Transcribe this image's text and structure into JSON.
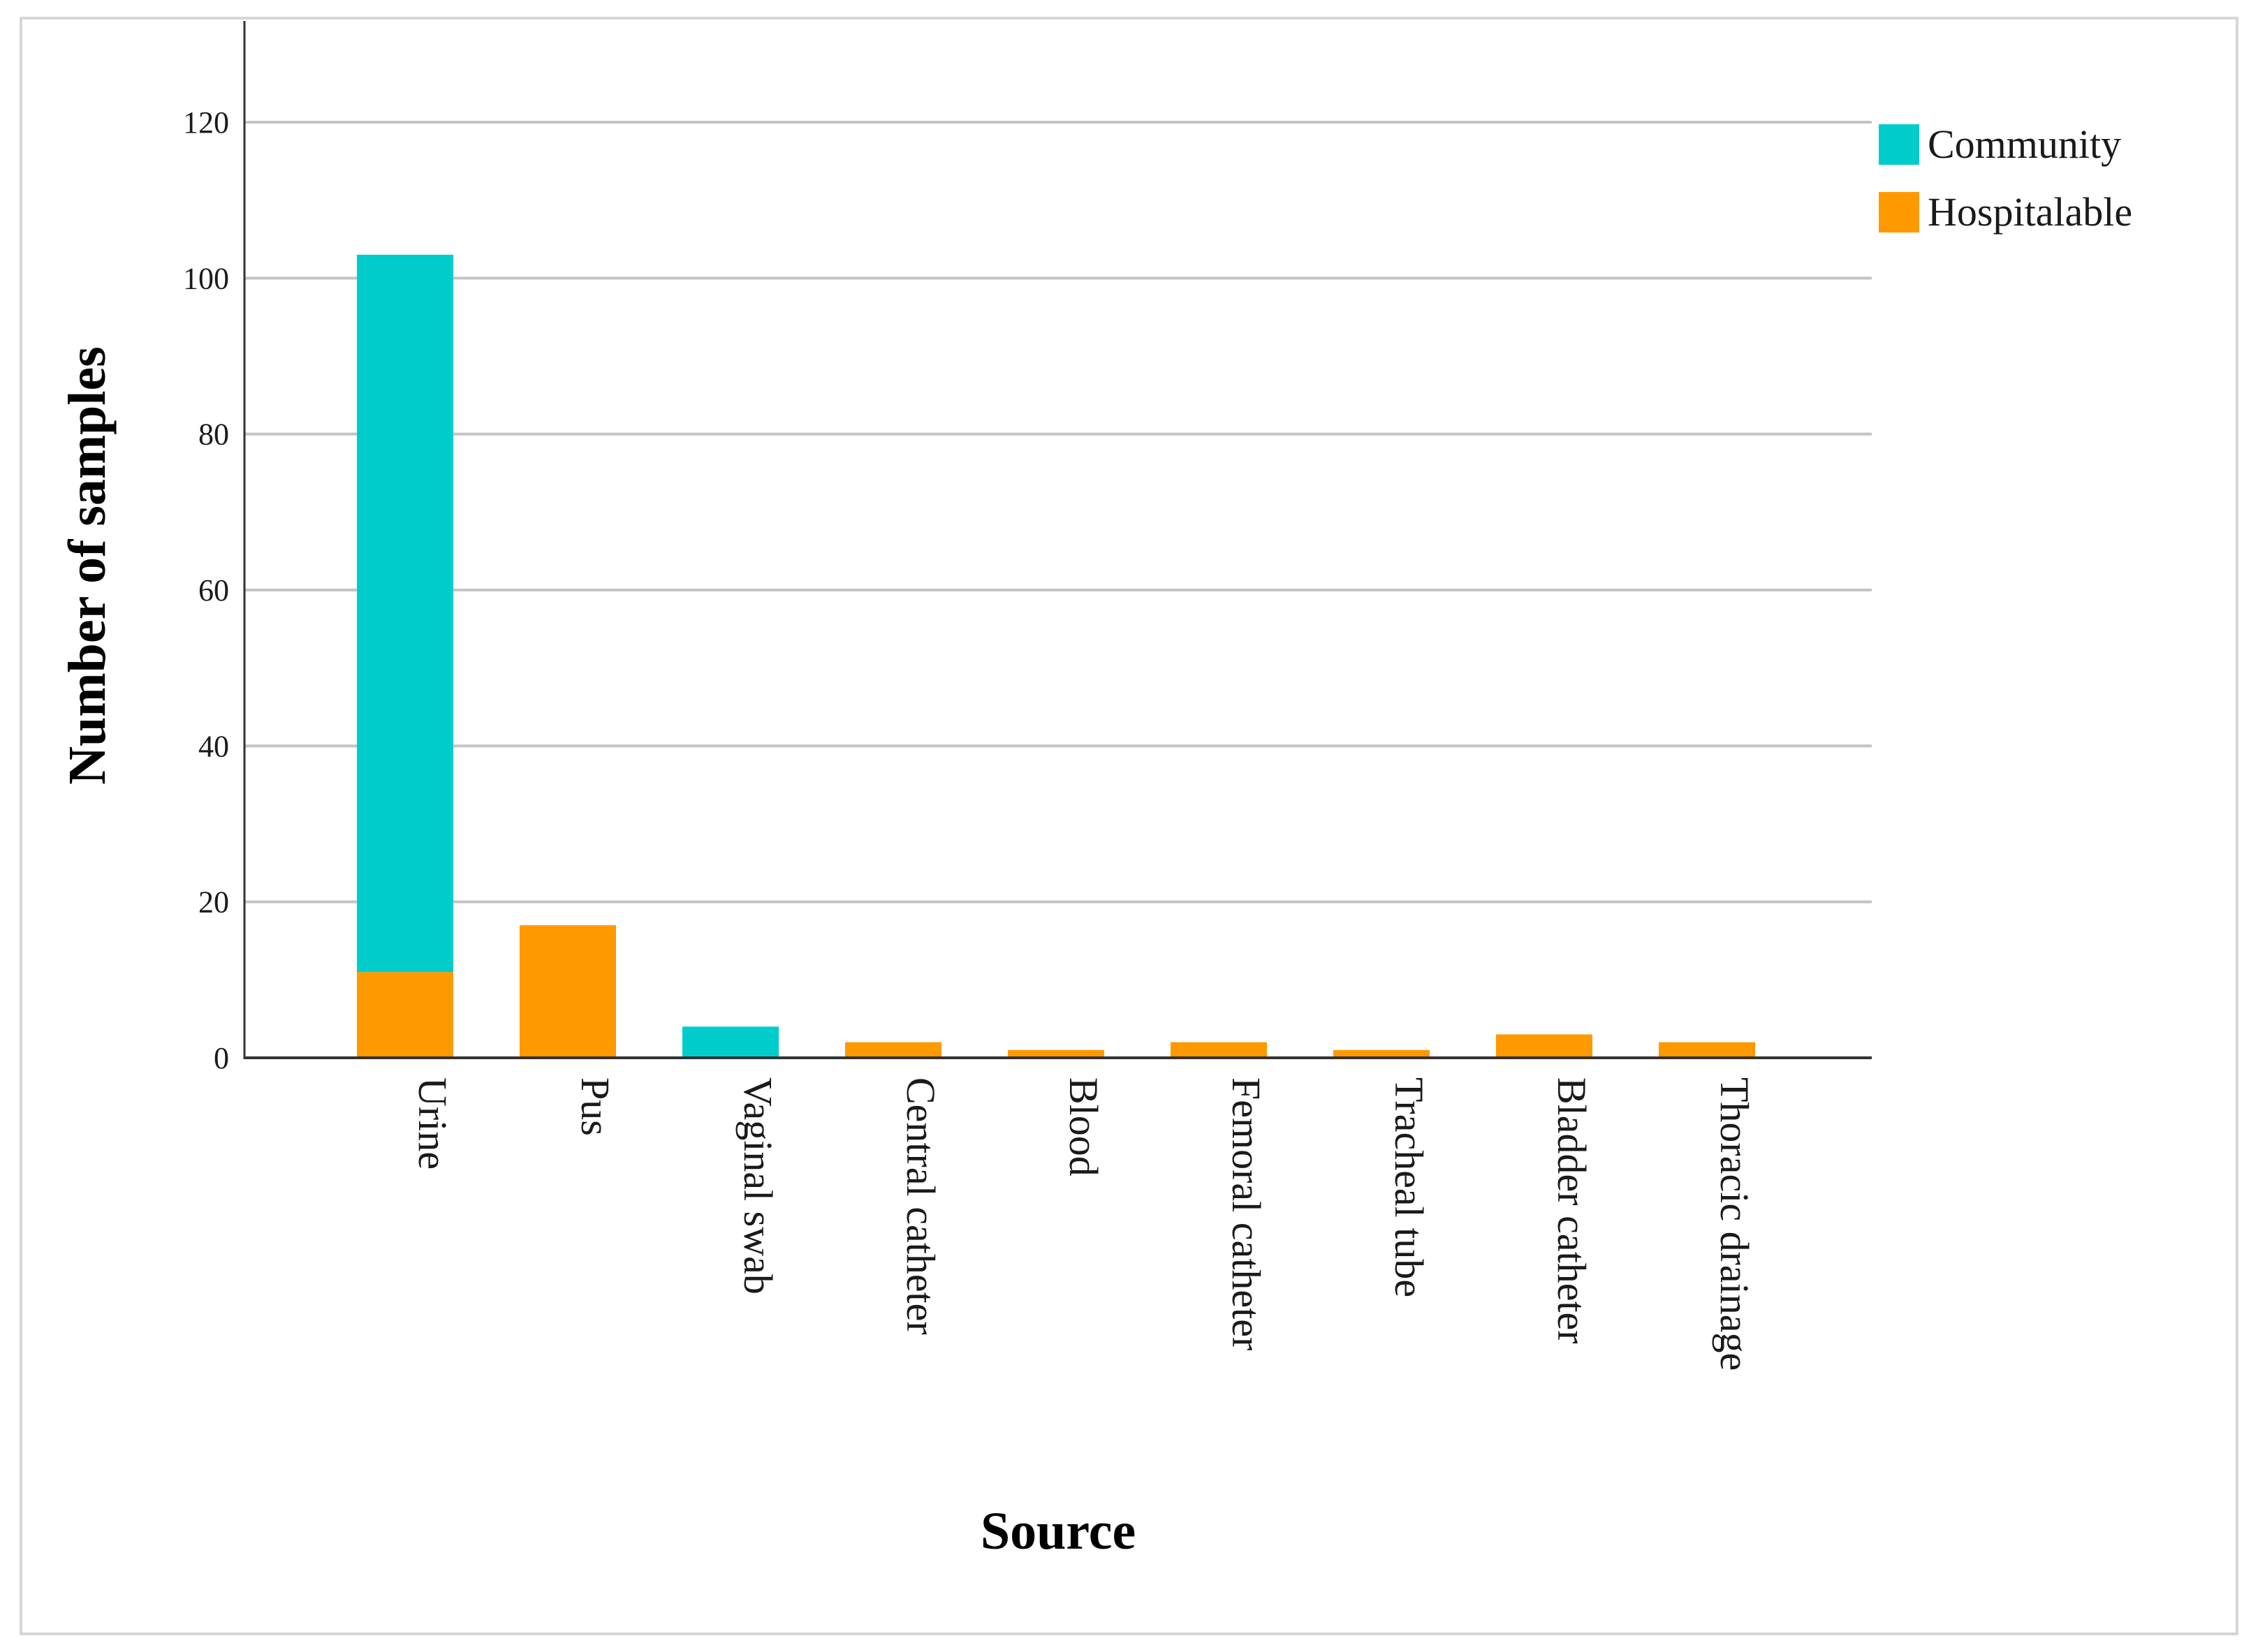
{
  "chart_data": {
    "type": "bar",
    "stacked": true,
    "xlabel": "Source",
    "ylabel": "Number of samples",
    "ylim": [
      0,
      130
    ],
    "yticks": [
      0,
      20,
      40,
      60,
      80,
      100,
      120
    ],
    "grid": true,
    "legend_position": "top-right",
    "categories": [
      "Urine",
      "Pus",
      "Vaginal swab",
      "Central catheter",
      "Blood",
      "Femoral catheter",
      "Tracheal tube",
      "Bladder catheter",
      "Thoracic drainage"
    ],
    "series": [
      {
        "name": "Hospitalable",
        "color": "#ff9900",
        "values": [
          11,
          17,
          0,
          2,
          1,
          2,
          1,
          3,
          2
        ]
      },
      {
        "name": "Community",
        "color": "#00cccc",
        "values": [
          92,
          0,
          4,
          0,
          0,
          0,
          0,
          0,
          0
        ]
      }
    ],
    "legend_order": [
      "Community",
      "Hospitalable"
    ]
  }
}
